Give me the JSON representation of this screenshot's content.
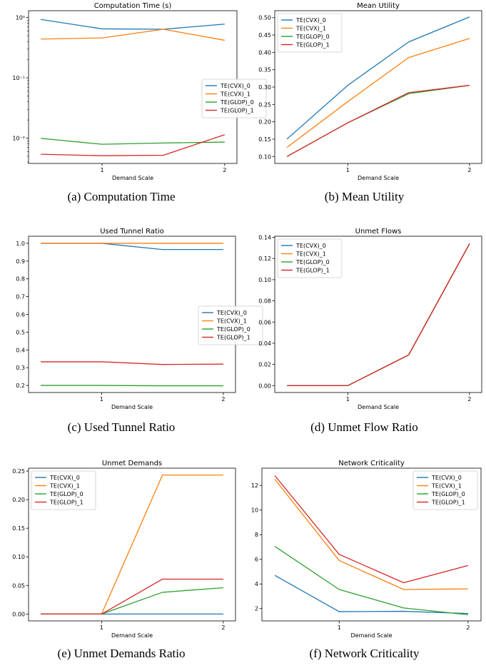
{
  "chart_data": [
    {
      "id": "a",
      "type": "line",
      "caption": "(a) Computation Time",
      "title": "Computation Time (s)",
      "xlabel": "Demand Scale",
      "ylabel": "",
      "yscale": "log",
      "xlim": [
        0.4,
        2.1
      ],
      "ylim": [
        0.0038,
        1.3
      ],
      "xticks": [
        1,
        2
      ],
      "xtick_labels": [
        "1",
        "2"
      ],
      "yticks": [
        0.01,
        0.1,
        1
      ],
      "ytick_labels": [
        "10⁻²",
        "10⁻¹",
        "10⁰"
      ],
      "legend_position": "center-right",
      "x": [
        0.5,
        1.0,
        1.5,
        2.0
      ],
      "series": [
        {
          "name": "TE(CVX)_0",
          "color": "#1f77b4",
          "values": [
            0.93,
            0.65,
            0.64,
            0.78
          ]
        },
        {
          "name": "TE(CVX)_1",
          "color": "#ff7f0e",
          "values": [
            0.44,
            0.46,
            0.64,
            0.42
          ]
        },
        {
          "name": "TE(GLOP)_0",
          "color": "#2ca02c",
          "values": [
            0.0099,
            0.0079,
            0.0083,
            0.0086
          ]
        },
        {
          "name": "TE(GLOP)_1",
          "color": "#d62728",
          "values": [
            0.0054,
            0.0051,
            0.0052,
            0.0114
          ]
        }
      ]
    },
    {
      "id": "b",
      "type": "line",
      "caption": "(b) Mean Utility",
      "title": "Mean Utility",
      "xlabel": "Demand Scale",
      "ylabel": "",
      "yscale": "linear",
      "xlim": [
        0.4,
        2.1
      ],
      "ylim": [
        0.08,
        0.52
      ],
      "xticks": [
        1,
        2
      ],
      "xtick_labels": [
        "1",
        "2"
      ],
      "yticks": [
        0.1,
        0.15,
        0.2,
        0.25,
        0.3,
        0.35,
        0.4,
        0.45,
        0.5
      ],
      "ytick_labels": [
        "0.10",
        "0.15",
        "0.20",
        "0.25",
        "0.30",
        "0.35",
        "0.40",
        "0.45",
        "0.50"
      ],
      "legend_position": "upper-left",
      "x": [
        0.5,
        1.0,
        1.5,
        2.0
      ],
      "series": [
        {
          "name": "TE(CVX)_0",
          "color": "#1f77b4",
          "values": [
            0.15,
            0.305,
            0.43,
            0.502
          ]
        },
        {
          "name": "TE(CVX)_1",
          "color": "#ff7f0e",
          "values": [
            0.126,
            0.258,
            0.385,
            0.44
          ]
        },
        {
          "name": "TE(GLOP)_0",
          "color": "#2ca02c",
          "values": [
            0.1,
            0.197,
            0.281,
            0.305
          ]
        },
        {
          "name": "TE(GLOP)_1",
          "color": "#d62728",
          "values": [
            0.1,
            0.197,
            0.284,
            0.305
          ]
        }
      ]
    },
    {
      "id": "c",
      "type": "line",
      "caption": "(c) Used Tunnel Ratio",
      "title": "Used Tunnel Ratio",
      "xlabel": "Demand Scale",
      "ylabel": "",
      "yscale": "linear",
      "xlim": [
        0.4,
        2.1
      ],
      "ylim": [
        0.16,
        1.04
      ],
      "xticks": [
        1,
        2
      ],
      "xtick_labels": [
        "1",
        "2"
      ],
      "yticks": [
        0.2,
        0.3,
        0.4,
        0.5,
        0.6,
        0.7,
        0.8,
        0.9,
        1.0
      ],
      "ytick_labels": [
        "0.2",
        "0.3",
        "0.4",
        "0.5",
        "0.6",
        "0.7",
        "0.8",
        "0.9",
        "1.0"
      ],
      "legend_position": "center-right",
      "x": [
        0.5,
        1.0,
        1.5,
        2.0
      ],
      "series": [
        {
          "name": "TE(CVX)_0",
          "color": "#1f77b4",
          "values": [
            1.0,
            1.0,
            0.965,
            0.965
          ]
        },
        {
          "name": "TE(CVX)_1",
          "color": "#ff7f0e",
          "values": [
            1.0,
            1.0,
            1.0,
            1.0
          ]
        },
        {
          "name": "TE(GLOP)_0",
          "color": "#2ca02c",
          "values": [
            0.2,
            0.2,
            0.198,
            0.198
          ]
        },
        {
          "name": "TE(GLOP)_1",
          "color": "#d62728",
          "values": [
            0.333,
            0.333,
            0.318,
            0.32
          ]
        }
      ]
    },
    {
      "id": "d",
      "type": "line",
      "caption": "(d) Unmet Flow Ratio",
      "title": "Unmet Flows",
      "xlabel": "Demand Scale",
      "ylabel": "",
      "yscale": "linear",
      "xlim": [
        0.4,
        2.1
      ],
      "ylim": [
        -0.0065,
        0.141
      ],
      "xticks": [
        1,
        2
      ],
      "xtick_labels": [
        "1",
        "2"
      ],
      "yticks": [
        0.0,
        0.02,
        0.04,
        0.06,
        0.08,
        0.1,
        0.12,
        0.14
      ],
      "ytick_labels": [
        "0.00",
        "0.02",
        "0.04",
        "0.06",
        "0.08",
        "0.10",
        "0.12",
        "0.14"
      ],
      "legend_position": "upper-left",
      "x": [
        0.5,
        1.0,
        1.5,
        2.0
      ],
      "series": [
        {
          "name": "TE(CVX)_0",
          "color": "#1f77b4",
          "values": [
            0.0,
            0.0,
            0.029,
            0.134
          ]
        },
        {
          "name": "TE(CVX)_1",
          "color": "#ff7f0e",
          "values": [
            0.0,
            0.0,
            0.029,
            0.134
          ]
        },
        {
          "name": "TE(GLOP)_0",
          "color": "#2ca02c",
          "values": [
            0.0,
            0.0,
            0.029,
            0.134
          ]
        },
        {
          "name": "TE(GLOP)_1",
          "color": "#d62728",
          "values": [
            0.0,
            0.0,
            0.029,
            0.134
          ]
        }
      ]
    },
    {
      "id": "e",
      "type": "line",
      "caption": "(e) Unmet Demands Ratio",
      "title": "Unmet Demands",
      "xlabel": "Demand Scale",
      "ylabel": "",
      "yscale": "linear",
      "xlim": [
        0.4,
        2.1
      ],
      "ylim": [
        -0.012,
        0.255
      ],
      "xticks": [
        1,
        2
      ],
      "xtick_labels": [
        "1",
        "2"
      ],
      "yticks": [
        0.0,
        0.05,
        0.1,
        0.15,
        0.2,
        0.25
      ],
      "ytick_labels": [
        "0.00",
        "0.05",
        "0.10",
        "0.15",
        "0.20",
        "0.25"
      ],
      "legend_position": "upper-left",
      "x": [
        0.5,
        1.0,
        1.5,
        2.0
      ],
      "series": [
        {
          "name": "TE(CVX)_0",
          "color": "#1f77b4",
          "values": [
            0.0,
            0.0,
            0.0,
            0.0
          ]
        },
        {
          "name": "TE(CVX)_1",
          "color": "#ff7f0e",
          "values": [
            0.0,
            0.0,
            0.243,
            0.243
          ]
        },
        {
          "name": "TE(GLOP)_0",
          "color": "#2ca02c",
          "values": [
            0.0,
            0.0,
            0.038,
            0.046
          ]
        },
        {
          "name": "TE(GLOP)_1",
          "color": "#d62728",
          "values": [
            0.0,
            0.0,
            0.061,
            0.061
          ]
        }
      ]
    },
    {
      "id": "f",
      "type": "line",
      "caption": "(f) Network Criticality",
      "title": "Network Criticality",
      "xlabel": "Demand Scale",
      "ylabel": "",
      "yscale": "linear",
      "xlim": [
        0.4,
        2.1
      ],
      "ylim": [
        1.0,
        13.4
      ],
      "xticks": [
        1,
        2
      ],
      "xtick_labels": [
        "1",
        "2"
      ],
      "yticks": [
        2,
        4,
        6,
        8,
        10,
        12
      ],
      "ytick_labels": [
        "2",
        "4",
        "6",
        "8",
        "10",
        "12"
      ],
      "legend_position": "upper-right",
      "x": [
        0.5,
        1.0,
        1.5,
        2.0
      ],
      "series": [
        {
          "name": "TE(CVX)_0",
          "color": "#1f77b4",
          "values": [
            4.7,
            1.75,
            1.78,
            1.6
          ]
        },
        {
          "name": "TE(CVX)_1",
          "color": "#ff7f0e",
          "values": [
            12.5,
            5.9,
            3.55,
            3.6
          ]
        },
        {
          "name": "TE(GLOP)_0",
          "color": "#2ca02c",
          "values": [
            7.05,
            3.55,
            2.05,
            1.5
          ]
        },
        {
          "name": "TE(GLOP)_1",
          "color": "#d62728",
          "values": [
            12.8,
            6.4,
            4.1,
            5.5
          ]
        }
      ]
    }
  ]
}
